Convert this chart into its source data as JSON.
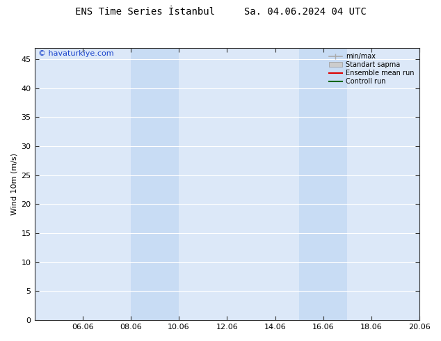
{
  "title": "ENS Time Series İstanbul     Sa. 04.06.2024 04 UTC",
  "ylabel": "Wind 10m (m/s)",
  "watermark": "© havaturkiye.com",
  "watermark_color": "#1a44cc",
  "background_color": "#ffffff",
  "plot_bg_color": "#dce8f8",
  "shaded_bands": [
    {
      "xstart": 8.06,
      "xend": 10.06,
      "color": "#c8dcf4"
    },
    {
      "xstart": 15.06,
      "xend": 17.06,
      "color": "#c8dcf4"
    }
  ],
  "xlim": [
    4.06,
    20.06
  ],
  "ylim": [
    0,
    47
  ],
  "xticks": [
    6.06,
    8.06,
    10.06,
    12.06,
    14.06,
    16.06,
    18.06,
    20.06
  ],
  "xtick_labels": [
    "06.06",
    "08.06",
    "10.06",
    "12.06",
    "14.06",
    "16.06",
    "18.06",
    "20.06"
  ],
  "yticks": [
    0,
    5,
    10,
    15,
    20,
    25,
    30,
    35,
    40,
    45
  ],
  "legend_entries": [
    {
      "label": "min/max",
      "color": "#aaaaaa",
      "lw": 1.2,
      "style": "solid",
      "type": "minmax"
    },
    {
      "label": "Standart sapma",
      "color": "#cccccc",
      "lw": 8,
      "style": "solid",
      "type": "patch"
    },
    {
      "label": "Ensemble mean run",
      "color": "#dd0000",
      "lw": 1.5,
      "style": "solid",
      "type": "line"
    },
    {
      "label": "Controll run",
      "color": "#006600",
      "lw": 1.5,
      "style": "solid",
      "type": "line"
    }
  ],
  "grid_color": "#ffffff",
  "spine_color": "#333333",
  "tick_color": "#333333",
  "title_fontsize": 10,
  "label_fontsize": 8,
  "tick_fontsize": 8,
  "watermark_fontsize": 8
}
